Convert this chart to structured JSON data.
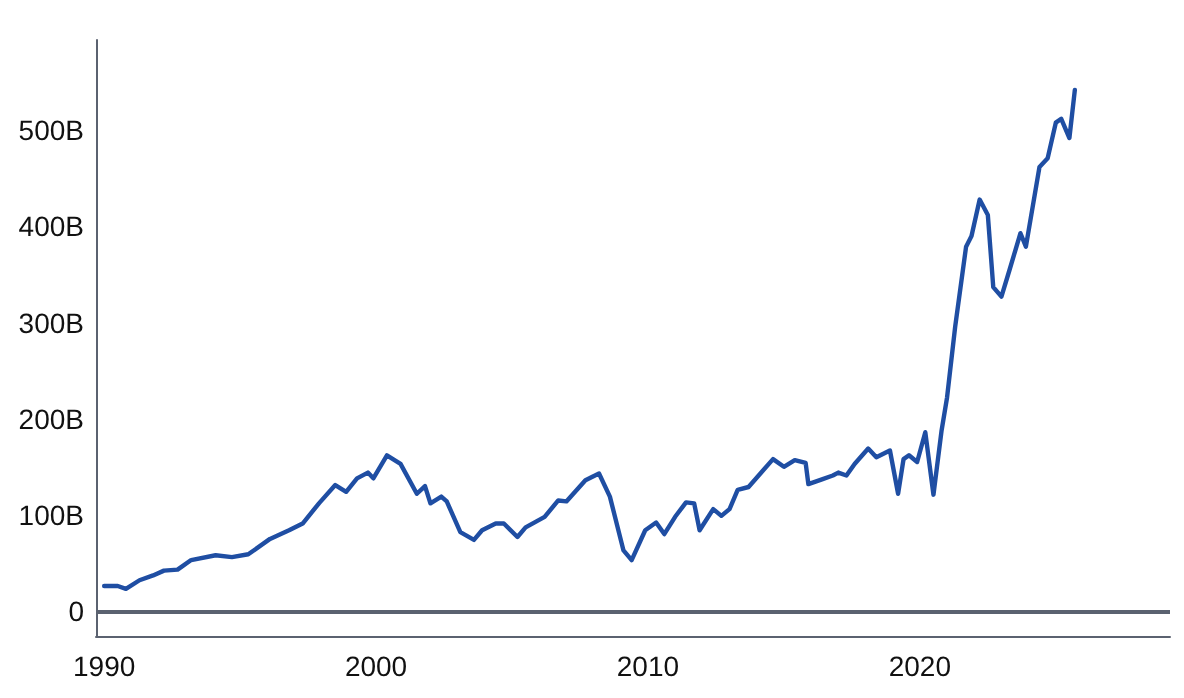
{
  "chart_data": {
    "type": "line",
    "x": [
      1990,
      1990.5,
      1990.8,
      1991.3,
      1991.8,
      1992.2,
      1992.7,
      1993.2,
      1994.1,
      1994.7,
      1995.3,
      1996.1,
      1996.8,
      1997.3,
      1997.9,
      1998.5,
      1998.9,
      1999.3,
      1999.7,
      1999.9,
      2000.4,
      2000.9,
      2001.5,
      2001.8,
      2002.0,
      2002.4,
      2002.6,
      2003.1,
      2003.6,
      2003.9,
      2004.4,
      2004.7,
      2005.2,
      2005.5,
      2006.2,
      2006.7,
      2007.0,
      2007.7,
      2008.2,
      2008.6,
      2009.1,
      2009.4,
      2009.9,
      2010.3,
      2010.6,
      2011.0,
      2011.4,
      2011.7,
      2011.9,
      2012.4,
      2012.7,
      2013.0,
      2013.3,
      2013.7,
      2014.6,
      2015.0,
      2015.4,
      2015.8,
      2015.9,
      2016.4,
      2016.8,
      2017.0,
      2017.3,
      2017.6,
      2018.1,
      2018.4,
      2018.9,
      2019.2,
      2019.4,
      2019.6,
      2019.9,
      2020.2,
      2020.5,
      2020.8,
      2021.0,
      2021.3,
      2021.7,
      2021.9,
      2022.2,
      2022.5,
      2022.7,
      2023.0,
      2023.3,
      2023.7,
      2023.9,
      2024.4,
      2024.7,
      2025.0,
      2025.2,
      2025.5,
      2025.7
    ],
    "series": [
      {
        "color": "#1f4ea3",
        "values": [
          26,
          26,
          23,
          32,
          37,
          42,
          43,
          53,
          58,
          56,
          59,
          75,
          84,
          91,
          112,
          131,
          124,
          138,
          144,
          138,
          162,
          153,
          122,
          130,
          112,
          119,
          114,
          82,
          74,
          84,
          91,
          91,
          77,
          87,
          98,
          115,
          114,
          136,
          143,
          119,
          63,
          53,
          84,
          92,
          80,
          98,
          113,
          112,
          84,
          106,
          99,
          106,
          126,
          129,
          158,
          150,
          157,
          154,
          132,
          137,
          141,
          144,
          141,
          153,
          169,
          160,
          167,
          122,
          158,
          162,
          155,
          186,
          121,
          188,
          222,
          296,
          379,
          390,
          428,
          412,
          337,
          327,
          355,
          393,
          379,
          462,
          471,
          508,
          512,
          492,
          542
        ]
      }
    ],
    "xlim": [
      1989.7,
      2029.2
    ],
    "xticks": [
      1990,
      2000,
      2010,
      2020
    ],
    "ylim": [
      -26,
      594
    ],
    "yticks": [
      {
        "value": 0,
        "label": "0"
      },
      {
        "value": 100,
        "label": "100B"
      },
      {
        "value": 200,
        "label": "200B"
      },
      {
        "value": 300,
        "label": "300B"
      },
      {
        "value": 400,
        "label": "400B"
      },
      {
        "value": 500,
        "label": "500B"
      }
    ],
    "ref_lines": [
      {
        "axis": "y",
        "value": 0,
        "color": "#5b6270"
      }
    ],
    "grid": false,
    "marker": "none",
    "line_style": "solid"
  }
}
